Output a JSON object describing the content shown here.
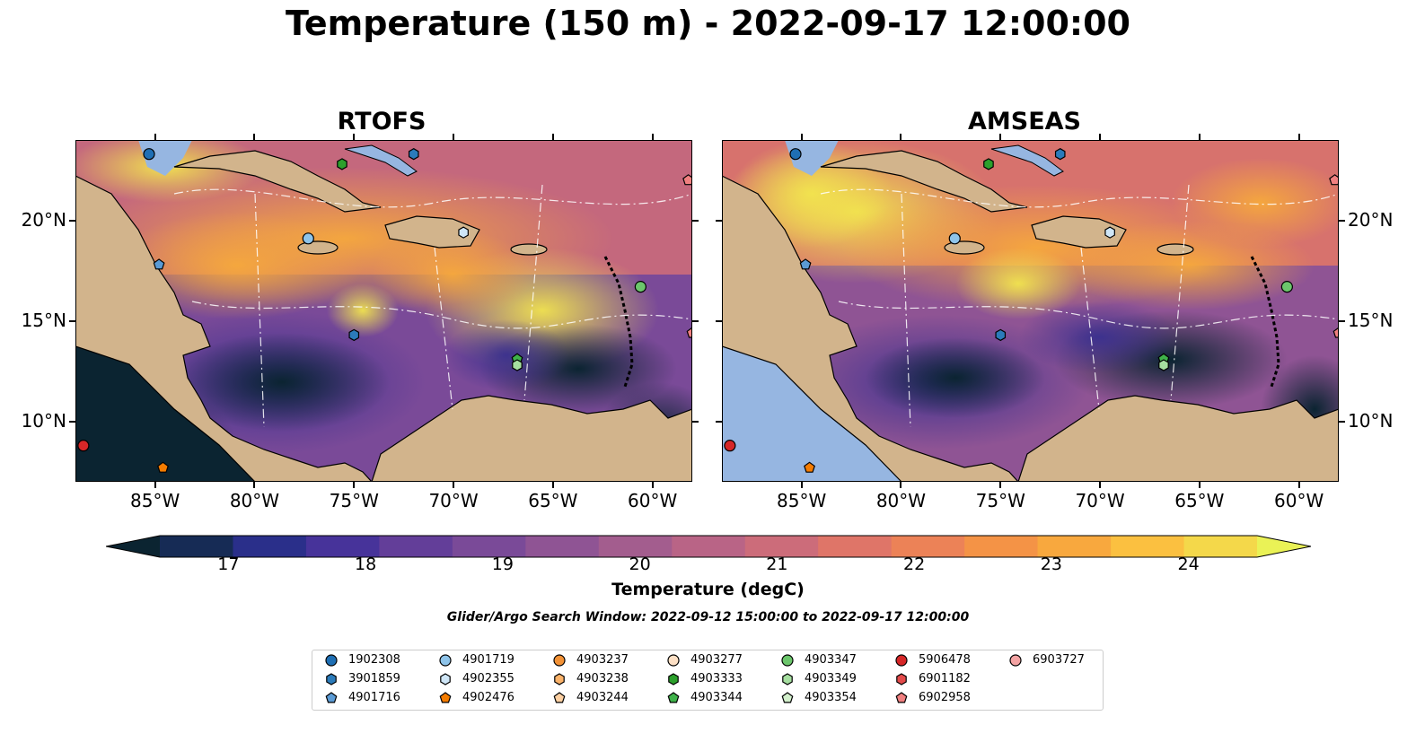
{
  "figure": {
    "title": "Temperature (150 m) - 2022-09-17 12:00:00",
    "colorbar_label": "Temperature (degC)",
    "search_window": "Glider/Argo Search Window: 2022-09-12 15:00:00 to 2022-09-17 12:00:00"
  },
  "colors": {
    "land": "#d2b48c",
    "water_shallow": "#96b6e1",
    "contour": "#ffffff"
  },
  "chart_data": [
    {
      "type": "heatmap",
      "title": "RTOFS",
      "xlim": [
        -89,
        -58
      ],
      "ylim": [
        7,
        24
      ],
      "xticks": [
        -85,
        -80,
        -75,
        -70,
        -65,
        -60
      ],
      "xtick_labels": [
        "85°W",
        "80°W",
        "75°W",
        "70°W",
        "65°W",
        "60°W"
      ],
      "yticks": [
        10,
        15,
        20
      ],
      "ytick_labels": [
        "10°N",
        "15°N",
        "20°N"
      ],
      "ytick_side": "left",
      "grid": false
    },
    {
      "type": "heatmap",
      "title": "AMSEAS",
      "xlim": [
        -89,
        -58
      ],
      "ylim": [
        7,
        24
      ],
      "xticks": [
        -85,
        -80,
        -75,
        -70,
        -65,
        -60
      ],
      "xtick_labels": [
        "85°W",
        "80°W",
        "75°W",
        "70°W",
        "65°W",
        "60°W"
      ],
      "yticks": [
        10,
        15,
        20
      ],
      "ytick_labels": [
        "10°N",
        "15°N",
        "20°N"
      ],
      "ytick_side": "right",
      "grid": false
    }
  ],
  "colorbar": {
    "min": 16.5,
    "max": 24.5,
    "step": 0.5,
    "ticks": [
      17,
      18,
      19,
      20,
      21,
      22,
      23,
      24
    ],
    "extend": "both",
    "colors": [
      "#0b2431",
      "#162b55",
      "#2a2f8a",
      "#47339a",
      "#633e99",
      "#7a4a98",
      "#8f5494",
      "#a35d8e",
      "#b96486",
      "#cc6c7a",
      "#df7568",
      "#ec8257",
      "#f49346",
      "#f8a83e",
      "#fbc040",
      "#f4d84a",
      "#eaf256"
    ]
  },
  "legend": {
    "location": "lower center",
    "entries": [
      {
        "id": "1902308",
        "marker": "circle",
        "color": "#1f6fb4"
      },
      {
        "id": "3901859",
        "marker": "hexagon",
        "color": "#2b7bba"
      },
      {
        "id": "4901716",
        "marker": "pentagon",
        "color": "#5b9bd5"
      },
      {
        "id": "4901719",
        "marker": "circle",
        "color": "#8ec4ea"
      },
      {
        "id": "4902355",
        "marker": "hexagon",
        "color": "#cfe6f7"
      },
      {
        "id": "4902476",
        "marker": "pentagon",
        "color": "#f57c00"
      },
      {
        "id": "4903237",
        "marker": "circle",
        "color": "#f39236"
      },
      {
        "id": "4903238",
        "marker": "hexagon",
        "color": "#fbb36a"
      },
      {
        "id": "4903244",
        "marker": "pentagon",
        "color": "#fdd0a2"
      },
      {
        "id": "4903277",
        "marker": "circle",
        "color": "#fde0c5"
      },
      {
        "id": "4903333",
        "marker": "hexagon",
        "color": "#2ca02c"
      },
      {
        "id": "4903344",
        "marker": "pentagon",
        "color": "#3fb24a"
      },
      {
        "id": "4903347",
        "marker": "circle",
        "color": "#6cc66c"
      },
      {
        "id": "4903349",
        "marker": "hexagon",
        "color": "#a6dfa0"
      },
      {
        "id": "4903354",
        "marker": "pentagon",
        "color": "#d3f0cc"
      },
      {
        "id": "5906478",
        "marker": "circle",
        "color": "#d62728"
      },
      {
        "id": "6901182",
        "marker": "hexagon",
        "color": "#e34a4a"
      },
      {
        "id": "6902958",
        "marker": "pentagon",
        "color": "#f08080"
      },
      {
        "id": "6903727",
        "marker": "circle",
        "color": "#f4a3a3"
      }
    ]
  },
  "floats": [
    {
      "id": "1902308",
      "lon": -85.3,
      "lat": 23.3
    },
    {
      "id": "3901859",
      "lon": -72.0,
      "lat": 23.3
    },
    {
      "id": "4903333",
      "lon": -75.6,
      "lat": 22.8
    },
    {
      "id": "6902958",
      "lon": -58.2,
      "lat": 22.0
    },
    {
      "id": "4901719",
      "lon": -77.3,
      "lat": 19.1
    },
    {
      "id": "4902355",
      "lon": -69.5,
      "lat": 19.4
    },
    {
      "id": "4901716",
      "lon": -84.8,
      "lat": 17.8
    },
    {
      "id": "4903347",
      "lon": -60.6,
      "lat": 16.7
    },
    {
      "id": "3901859",
      "lon": -75.0,
      "lat": 14.3
    },
    {
      "id": "6902958",
      "lon": -58.0,
      "lat": 14.4
    },
    {
      "id": "4903344",
      "lon": -66.8,
      "lat": 13.1
    },
    {
      "id": "4903349",
      "lon": -66.8,
      "lat": 12.8
    },
    {
      "id": "5906478",
      "lon": -88.6,
      "lat": 8.8
    },
    {
      "id": "4902476",
      "lon": -84.6,
      "lat": 7.7
    }
  ]
}
